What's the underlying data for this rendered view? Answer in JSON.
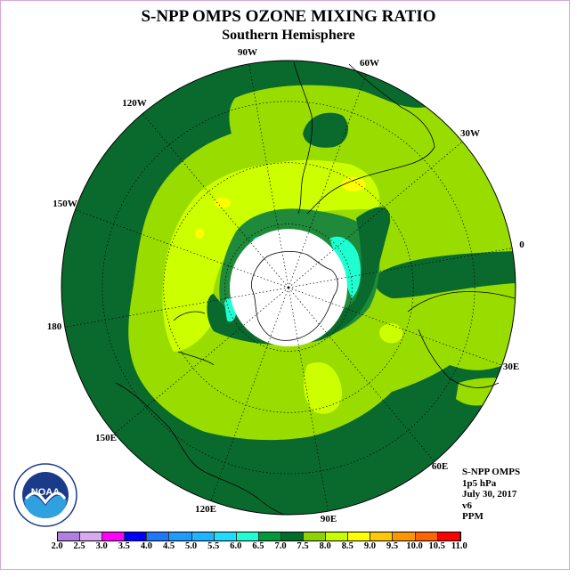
{
  "title": "S-NPP OMPS OZONE MIXING RATIO",
  "subtitle": "Southern Hemisphere",
  "info": [
    "S-NPP OMPS",
    "1p5 hPa",
    "July 30, 2017",
    "v6",
    "PPM"
  ],
  "logo_text": "NOAA",
  "longitude_labels": [
    "90W",
    "60W",
    "30W",
    "0",
    "30E",
    "60E",
    "90E",
    "120E",
    "150E",
    "180",
    "150W",
    "120W"
  ],
  "colorbar": {
    "labels": [
      "2.0",
      "2.5",
      "3.0",
      "3.5",
      "4.0",
      "4.5",
      "5.0",
      "5.5",
      "6.0",
      "6.5",
      "7.0",
      "7.5",
      "8.0",
      "8.5",
      "9.0",
      "9.5",
      "10.0",
      "10.5",
      "11.0"
    ],
    "colors": [
      "#b07fe0",
      "#d8a8f0",
      "#ff00ff",
      "#0000ff",
      "#1e78ff",
      "#1e9bff",
      "#1eb4ff",
      "#1edcff",
      "#1effd2",
      "#009a3c",
      "#006e2a",
      "#8cd300",
      "#c8ff00",
      "#ffff00",
      "#ffc800",
      "#ff9600",
      "#ff6400",
      "#ff0000",
      "#a0522d"
    ]
  },
  "palette": {
    "dark_green": "#0a6a2e",
    "green": "#1f8a3a",
    "light_green": "#99dd00",
    "yellow_green": "#ccff00",
    "yellow": "#ffff00",
    "cyan": "#1effd2"
  }
}
